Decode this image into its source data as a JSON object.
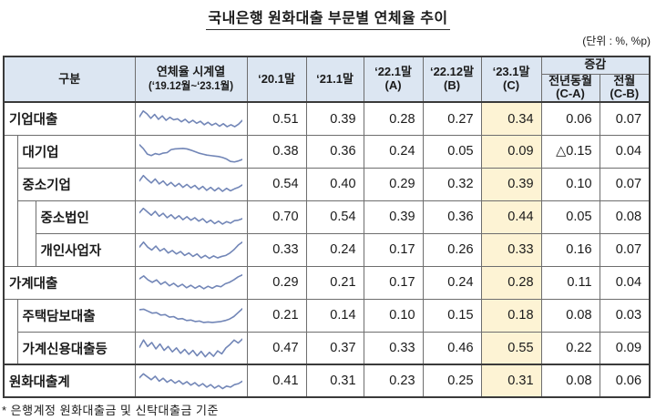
{
  "doc": {
    "title": "국내은행 원화대출 부문별 연체율 추이",
    "unit_note": "(단위 : %, %p)",
    "footnote": "*  은행계정 원화대출금 및 신탁대출금 기준"
  },
  "colors": {
    "header_bg": "#dce6f2",
    "highlight_col_bg": "#fdf3d4",
    "sparkline": "#7286b7",
    "border_inner": "#6e6e6e",
    "border_outer": "#3a3a3a"
  },
  "table": {
    "corner_header": "구분",
    "spark_header": {
      "line1": "연체율 시계열",
      "line2": "(‘19.12월~‘23.1월)"
    },
    "periods": [
      {
        "line1": "‘20.1말",
        "line2": ""
      },
      {
        "line1": "‘21.1말",
        "line2": ""
      },
      {
        "line1": "‘22.1말",
        "line2": "(A)"
      },
      {
        "line1": "‘22.12말",
        "line2": "(B)"
      },
      {
        "line1": "‘23.1말",
        "line2": "(C)"
      }
    ],
    "change": {
      "header": "증감",
      "subs": [
        {
          "line1": "전년동월",
          "line2": "(C-A)"
        },
        {
          "line1": "전월",
          "line2": "(C-B)"
        }
      ]
    },
    "rows": [
      {
        "label": "기업대출",
        "level": 0,
        "values": [
          "0.51",
          "0.39",
          "0.28",
          "0.27",
          "0.34",
          "0.06",
          "0.07"
        ],
        "spark": [
          38,
          14,
          26,
          44,
          28,
          48,
          34,
          52,
          40,
          50,
          46,
          58,
          48,
          62,
          52,
          64,
          56,
          70,
          60,
          72,
          64,
          76,
          66,
          78,
          70,
          78,
          68,
          52
        ]
      },
      {
        "label": "대기업",
        "level": 1,
        "values": [
          "0.38",
          "0.36",
          "0.24",
          "0.05",
          "0.09",
          "△0.15",
          "0.04"
        ],
        "spark": [
          18,
          34,
          56,
          62,
          54,
          58,
          52,
          50,
          38,
          35,
          34,
          33,
          35,
          40,
          46,
          52,
          56,
          60,
          62,
          64,
          66,
          70,
          76,
          86,
          88,
          84,
          78
        ]
      },
      {
        "label": "중소기업",
        "level": 1,
        "values": [
          "0.54",
          "0.40",
          "0.29",
          "0.32",
          "0.39",
          "0.10",
          "0.07"
        ],
        "spark": [
          32,
          10,
          26,
          40,
          24,
          44,
          32,
          50,
          38,
          54,
          42,
          58,
          46,
          60,
          50,
          66,
          54,
          70,
          58,
          72,
          60,
          74,
          62,
          72,
          64,
          58,
          48
        ]
      },
      {
        "label": "중소법인",
        "level": 2,
        "values": [
          "0.70",
          "0.54",
          "0.39",
          "0.36",
          "0.44",
          "0.05",
          "0.08"
        ],
        "spark": [
          28,
          10,
          24,
          38,
          22,
          42,
          30,
          48,
          36,
          52,
          40,
          56,
          44,
          58,
          48,
          62,
          52,
          68,
          58,
          72,
          62,
          74,
          64,
          70,
          60,
          58,
          52
        ]
      },
      {
        "label": "개인사업자",
        "level": 2,
        "values": [
          "0.33",
          "0.24",
          "0.17",
          "0.26",
          "0.33",
          "0.16",
          "0.07"
        ],
        "spark": [
          34,
          14,
          34,
          46,
          30,
          50,
          40,
          58,
          48,
          62,
          52,
          68,
          58,
          72,
          62,
          78,
          68,
          80,
          70,
          78,
          72,
          68,
          58,
          44,
          26,
          14
        ]
      },
      {
        "label": "가계대출",
        "level": 0,
        "values": [
          "0.29",
          "0.21",
          "0.17",
          "0.24",
          "0.28",
          "0.11",
          "0.04"
        ],
        "spark": [
          30,
          18,
          34,
          44,
          34,
          52,
          42,
          58,
          48,
          62,
          52,
          66,
          56,
          68,
          58,
          70,
          60,
          68,
          58,
          62,
          50,
          44,
          34,
          22,
          14
        ]
      },
      {
        "label": "주택담보대출",
        "level": 1,
        "values": [
          "0.21",
          "0.14",
          "0.10",
          "0.15",
          "0.18",
          "0.08",
          "0.03"
        ],
        "spark": [
          22,
          20,
          28,
          36,
          34,
          44,
          42,
          52,
          50,
          60,
          58,
          66,
          64,
          70,
          68,
          74,
          72,
          74,
          72,
          70,
          66,
          60,
          50,
          34,
          18
        ]
      },
      {
        "label": "가계신용대출등",
        "level": 1,
        "values": [
          "0.47",
          "0.37",
          "0.33",
          "0.46",
          "0.55",
          "0.22",
          "0.09"
        ],
        "spark": [
          42,
          12,
          38,
          22,
          48,
          28,
          54,
          38,
          60,
          44,
          66,
          50,
          70,
          54,
          76,
          58,
          80,
          62,
          78,
          56,
          68,
          44,
          30,
          12,
          24,
          8
        ]
      },
      {
        "label": "원화대출계",
        "level": 0,
        "values": [
          "0.41",
          "0.31",
          "0.23",
          "0.25",
          "0.31",
          "0.08",
          "0.06"
        ],
        "spark": [
          32,
          16,
          28,
          40,
          26,
          46,
          34,
          50,
          40,
          54,
          44,
          58,
          48,
          62,
          52,
          66,
          56,
          70,
          60,
          74,
          64,
          76,
          66,
          70,
          60,
          56,
          46
        ]
      }
    ]
  }
}
